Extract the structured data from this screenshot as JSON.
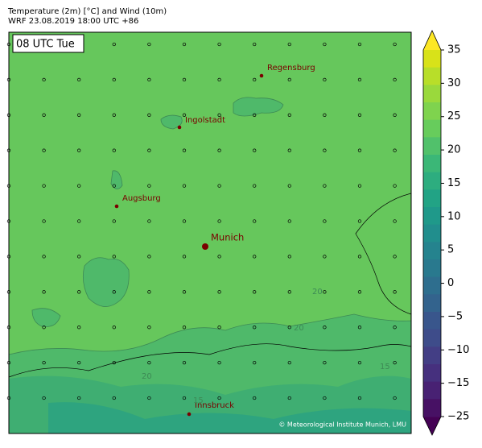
{
  "header": {
    "title": "Temperature (2m) [°C] and Wind (10m)",
    "subtitle": "WRF 23.08.2019 18:00 UTC +86"
  },
  "map": {
    "time_label": "08 UTC Tue",
    "cities": [
      {
        "name": "Regensburg"
      },
      {
        "name": "Ingolstadt"
      },
      {
        "name": "Augsburg"
      },
      {
        "name": "Munich"
      },
      {
        "name": "Innsbruck"
      }
    ],
    "contour_labels": [
      "20",
      "20",
      "20",
      "15",
      "15"
    ],
    "copyright": "© Meteorological Institute Munich, LMU"
  },
  "colorbar": {
    "ticks": [
      35,
      30,
      25,
      20,
      15,
      10,
      5,
      0,
      {
        "value": -5,
        "label": "−5"
      },
      {
        "value": -10,
        "label": "−10"
      },
      {
        "value": -15,
        "label": "−15"
      },
      {
        "value": -25,
        "label": "−25"
      }
    ],
    "colors": [
      "#fde725",
      "#d8e219",
      "#b8de29",
      "#9ad93c",
      "#7fd34e",
      "#67cc5c",
      "#51c16b",
      "#3bb777",
      "#2dad7f",
      "#22a385",
      "#1f998a",
      "#218e8d",
      "#25838e",
      "#29798e",
      "#2e6e8e",
      "#33638d",
      "#39568c",
      "#3e4c8a",
      "#433e85",
      "#46307e",
      "#482173",
      "#471164",
      "#440154"
    ]
  }
}
